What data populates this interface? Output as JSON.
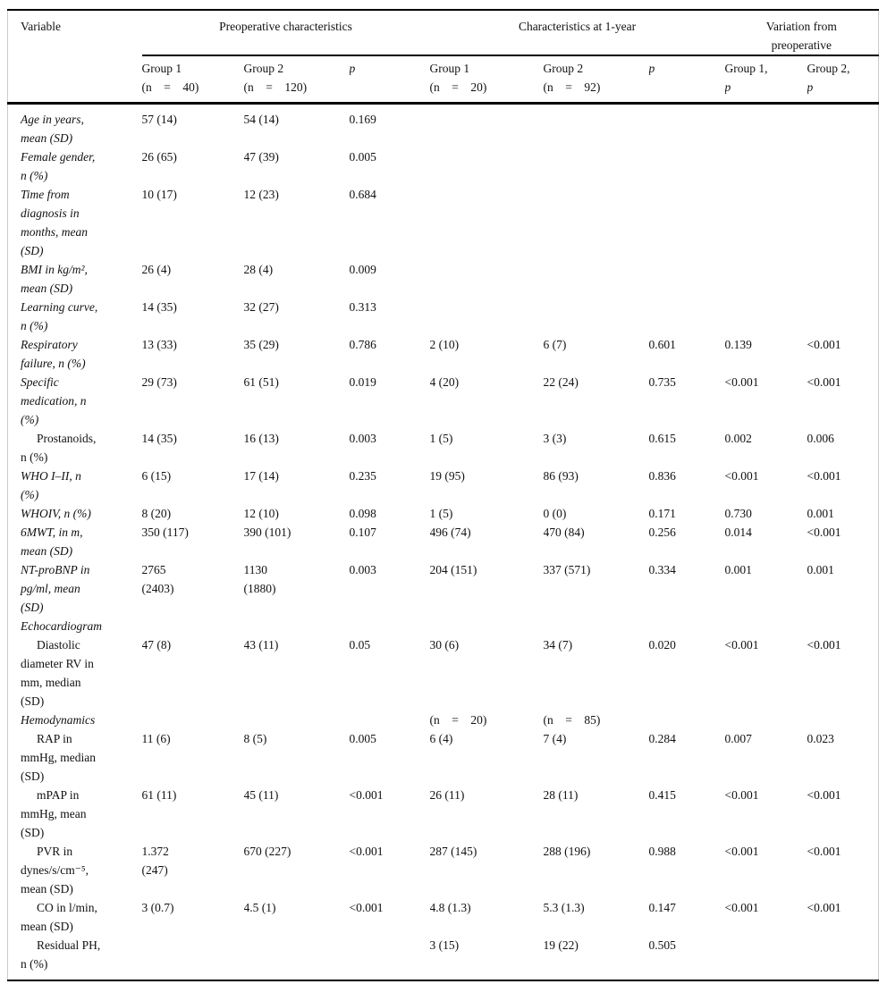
{
  "table": {
    "header": {
      "variable": "Variable",
      "group1_title": "Preoperative characteristics",
      "group2_title": "Characteristics at 1-year",
      "group3_title": "Variation from\npreoperative",
      "preop_g1": "Group 1\n(n    =    40)",
      "preop_g2": "Group 2\n(n    =    120)",
      "preop_p": "p",
      "yr_g1": "Group 1\n(n    =    20)",
      "yr_g2": "Group 2\n(n    =    92)",
      "yr_p": "p",
      "var_g1_line1": "Group 1,",
      "var_g1_line2": "p",
      "var_g2_line1": "Group 2,",
      "var_g2_line2": "p"
    },
    "rows": [
      {
        "label": "Age in years,\nmean (SD)",
        "style": "it",
        "cells": [
          "57 (14)",
          "54 (14)",
          "0.169",
          "",
          "",
          "",
          "",
          ""
        ]
      },
      {
        "label": "Female gender,\nn (%)",
        "style": "it",
        "cells": [
          "26 (65)",
          "47 (39)",
          "0.005",
          "",
          "",
          "",
          "",
          ""
        ]
      },
      {
        "label": "Time from\ndiagnosis in\nmonths, mean\n(SD)",
        "style": "it",
        "cells": [
          "10 (17)",
          "12 (23)",
          "0.684",
          "",
          "",
          "",
          "",
          ""
        ]
      },
      {
        "label": "BMI in kg/m²,\nmean (SD)",
        "style": "it",
        "cells": [
          "26 (4)",
          "28 (4)",
          "0.009",
          "",
          "",
          "",
          "",
          ""
        ]
      },
      {
        "label": "Learning curve,\nn (%)",
        "style": "it",
        "cells": [
          "14 (35)",
          "32 (27)",
          "0.313",
          "",
          "",
          "",
          "",
          ""
        ]
      },
      {
        "label": "Respiratory\nfailure, n (%)",
        "style": "it",
        "cells": [
          "13 (33)",
          "35 (29)",
          "0.786",
          "2 (10)",
          "6 (7)",
          "0.601",
          "0.139",
          "<0.001"
        ]
      },
      {
        "label": "Specific\nmedication, n\n(%)",
        "style": "it",
        "cells": [
          "29 (73)",
          "61 (51)",
          "0.019",
          "4 (20)",
          "22 (24)",
          "0.735",
          "<0.001",
          "<0.001"
        ]
      },
      {
        "label": "Prostanoids,\nn (%)",
        "style": "sub",
        "cells": [
          "14 (35)",
          "16 (13)",
          "0.003",
          "1 (5)",
          "3 (3)",
          "0.615",
          "0.002",
          "0.006"
        ]
      },
      {
        "label": "WHO I–II, n\n(%)",
        "style": "it",
        "cells": [
          "6 (15)",
          "17 (14)",
          "0.235",
          "19 (95)",
          "86 (93)",
          "0.836",
          "<0.001",
          "<0.001"
        ]
      },
      {
        "label": "WHOIV, n (%)",
        "style": "it",
        "cells": [
          "8 (20)",
          "12 (10)",
          "0.098",
          "1 (5)",
          "0 (0)",
          "0.171",
          "0.730",
          "0.001"
        ]
      },
      {
        "label": "6MWT, in m,\nmean (SD)",
        "style": "it",
        "cells": [
          "350 (117)",
          "390 (101)",
          "0.107",
          "496 (74)",
          "470 (84)",
          "0.256",
          "0.014",
          "<0.001"
        ]
      },
      {
        "label": "NT-proBNP in\npg/ml, mean\n(SD)",
        "style": "it",
        "cells": [
          "2765\n(2403)",
          "1130\n(1880)",
          "0.003",
          "204 (151)",
          "337 (571)",
          "0.334",
          "0.001",
          "0.001"
        ]
      },
      {
        "label": "Echocardiogram",
        "style": "it",
        "cells": [
          "",
          "",
          "",
          "",
          "",
          "",
          "",
          ""
        ]
      },
      {
        "label": "Diastolic\ndiameter RV in\nmm, median\n(SD)",
        "style": "sub",
        "cells": [
          "47 (8)",
          "43 (11)",
          "0.05",
          "30 (6)",
          "34 (7)",
          "0.020",
          "<0.001",
          "<0.001"
        ]
      },
      {
        "label": "Hemodynamics",
        "style": "it",
        "cells": [
          "",
          "",
          "",
          "(n    =    20)",
          "(n    =    85)",
          "",
          "",
          ""
        ]
      },
      {
        "label": "RAP in\nmmHg, median\n(SD)",
        "style": "sub",
        "cells": [
          "11 (6)",
          "8 (5)",
          "0.005",
          "6 (4)",
          "7 (4)",
          "0.284",
          "0.007",
          "0.023"
        ]
      },
      {
        "label": "mPAP in\nmmHg, mean\n(SD)",
        "style": "sub",
        "cells": [
          "61 (11)",
          "45 (11)",
          "<0.001",
          "26 (11)",
          "28 (11)",
          "0.415",
          "<0.001",
          "<0.001"
        ]
      },
      {
        "label": "PVR in\ndynes/s/cm⁻⁵,\nmean (SD)",
        "style": "sub",
        "cells": [
          "1.372\n(247)",
          "670 (227)",
          "<0.001",
          "287 (145)",
          "288 (196)",
          "0.988",
          "<0.001",
          "<0.001"
        ]
      },
      {
        "label": "CO in l/min,\nmean (SD)",
        "style": "sub",
        "cells": [
          "3 (0.7)",
          "4.5 (1)",
          "<0.001",
          "4.8 (1.3)",
          "5.3 (1.3)",
          "0.147",
          "<0.001",
          "<0.001"
        ]
      },
      {
        "label": "Residual PH,\nn (%)",
        "style": "sub",
        "cells": [
          "",
          "",
          "",
          "3 (15)",
          "19 (22)",
          "0.505",
          "",
          ""
        ]
      }
    ]
  }
}
